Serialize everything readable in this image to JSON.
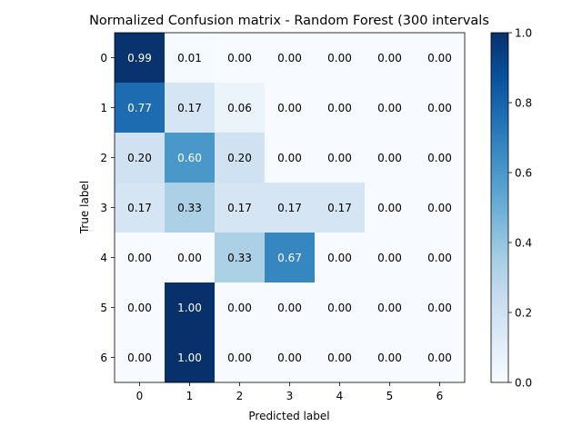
{
  "chart_data": {
    "type": "heatmap",
    "title": "Normalized Confusion matrix - Random Forest (300 intervals",
    "xlabel": "Predicted label",
    "ylabel": "True label",
    "x_categories": [
      "0",
      "1",
      "2",
      "3",
      "4",
      "5",
      "6"
    ],
    "y_categories": [
      "0",
      "1",
      "2",
      "3",
      "4",
      "5",
      "6"
    ],
    "cell_labels": [
      [
        "0.99",
        "0.01",
        "0.00",
        "0.00",
        "0.00",
        "0.00",
        "0.00"
      ],
      [
        "0.77",
        "0.17",
        "0.06",
        "0.00",
        "0.00",
        "0.00",
        "0.00"
      ],
      [
        "0.20",
        "0.60",
        "0.20",
        "0.00",
        "0.00",
        "0.00",
        "0.00"
      ],
      [
        "0.17",
        "0.33",
        "0.17",
        "0.17",
        "0.17",
        "0.00",
        "0.00"
      ],
      [
        "0.00",
        "0.00",
        "0.33",
        "0.67",
        "0.00",
        "0.00",
        "0.00"
      ],
      [
        "0.00",
        "1.00",
        "0.00",
        "0.00",
        "0.00",
        "0.00",
        "0.00"
      ],
      [
        "0.00",
        "1.00",
        "0.00",
        "0.00",
        "0.00",
        "0.00",
        "0.00"
      ]
    ],
    "values": [
      [
        0.99,
        0.01,
        0.0,
        0.0,
        0.0,
        0.0,
        0.0
      ],
      [
        0.77,
        0.17,
        0.06,
        0.0,
        0.0,
        0.0,
        0.0
      ],
      [
        0.2,
        0.6,
        0.2,
        0.0,
        0.0,
        0.0,
        0.0
      ],
      [
        0.17,
        0.33,
        0.17,
        0.17,
        0.17,
        0.0,
        0.0
      ],
      [
        0.0,
        0.0,
        0.33,
        0.67,
        0.0,
        0.0,
        0.0
      ],
      [
        0.0,
        1.0,
        0.0,
        0.0,
        0.0,
        0.0,
        0.0
      ],
      [
        0.0,
        1.0,
        0.0,
        0.0,
        0.0,
        0.0,
        0.0
      ]
    ],
    "colormap": "Blues",
    "vmin": 0.0,
    "vmax": 1.0,
    "colorbar_ticks": [
      "0.0",
      "0.2",
      "0.4",
      "0.6",
      "0.8",
      "1.0"
    ],
    "text_threshold": 0.5,
    "text_color_light": "#ffffff",
    "text_color_dark": "#000000",
    "grid": false
  }
}
